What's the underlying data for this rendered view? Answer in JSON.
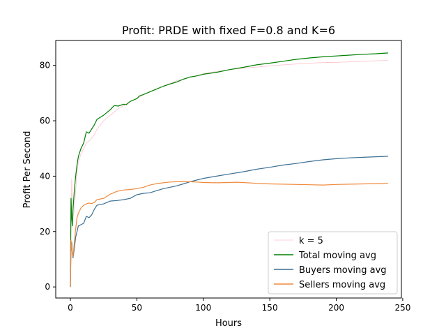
{
  "chart_data": {
    "type": "line",
    "title": "Profit: PRDE with fixed F=0.8 and K=6",
    "xlabel": "Hours",
    "ylabel": "Profit Per Second",
    "xlim": [
      -11,
      249
    ],
    "ylim": [
      -4,
      89
    ],
    "xticks": [
      0,
      50,
      100,
      150,
      200,
      250
    ],
    "yticks": [
      0,
      20,
      40,
      60,
      80
    ],
    "grid": false,
    "legend_position": "lower-right",
    "series": [
      {
        "name": "k = 5",
        "color": "#ffc0cb",
        "points": [
          [
            0,
            0
          ],
          [
            0.5,
            20
          ],
          [
            1,
            39
          ],
          [
            1.5,
            30
          ],
          [
            2,
            25
          ],
          [
            3,
            28
          ],
          [
            4,
            35
          ],
          [
            5,
            42
          ],
          [
            6,
            45
          ],
          [
            8,
            48
          ],
          [
            10,
            50
          ],
          [
            12,
            52
          ],
          [
            15,
            53
          ],
          [
            18,
            55
          ],
          [
            20,
            57
          ],
          [
            25,
            60
          ],
          [
            30,
            62
          ],
          [
            35,
            64
          ],
          [
            40,
            65.5
          ],
          [
            45,
            67
          ],
          [
            50,
            68
          ],
          [
            55,
            69.5
          ],
          [
            60,
            70.5
          ],
          [
            65,
            71.5
          ],
          [
            70,
            72.5
          ],
          [
            75,
            73.5
          ],
          [
            80,
            74.5
          ],
          [
            85,
            75
          ],
          [
            90,
            75.8
          ],
          [
            95,
            76.3
          ],
          [
            100,
            77
          ],
          [
            110,
            77.8
          ],
          [
            120,
            78.5
          ],
          [
            130,
            79
          ],
          [
            140,
            79.4
          ],
          [
            150,
            79.8
          ],
          [
            160,
            80.2
          ],
          [
            170,
            80.5
          ],
          [
            180,
            80.8
          ],
          [
            190,
            81
          ],
          [
            200,
            81.1
          ],
          [
            210,
            81.3
          ],
          [
            220,
            81.5
          ],
          [
            230,
            81.7
          ],
          [
            239,
            81.8
          ]
        ]
      },
      {
        "name": "Total moving avg",
        "color": "#008000",
        "points": [
          [
            0,
            0
          ],
          [
            0.5,
            32
          ],
          [
            1,
            25
          ],
          [
            1.5,
            22
          ],
          [
            2,
            28
          ],
          [
            3,
            35
          ],
          [
            4,
            40
          ],
          [
            5,
            44
          ],
          [
            6,
            47
          ],
          [
            8,
            50
          ],
          [
            10,
            52
          ],
          [
            12,
            56
          ],
          [
            14,
            55.5
          ],
          [
            16,
            57
          ],
          [
            18,
            58.5
          ],
          [
            20,
            60.5
          ],
          [
            25,
            62
          ],
          [
            30,
            64
          ],
          [
            33,
            65.5
          ],
          [
            36,
            65.3
          ],
          [
            40,
            66
          ],
          [
            42,
            65.8
          ],
          [
            45,
            67
          ],
          [
            50,
            68
          ],
          [
            52,
            69
          ],
          [
            55,
            69.5
          ],
          [
            60,
            70.5
          ],
          [
            65,
            71.5
          ],
          [
            70,
            72.5
          ],
          [
            75,
            73.3
          ],
          [
            80,
            74
          ],
          [
            85,
            75
          ],
          [
            90,
            75.8
          ],
          [
            95,
            76.2
          ],
          [
            100,
            76.8
          ],
          [
            110,
            77.5
          ],
          [
            120,
            78.5
          ],
          [
            130,
            79.3
          ],
          [
            140,
            80.2
          ],
          [
            150,
            80.8
          ],
          [
            160,
            81.5
          ],
          [
            170,
            82.2
          ],
          [
            180,
            82.7
          ],
          [
            190,
            83.1
          ],
          [
            200,
            83.4
          ],
          [
            210,
            83.7
          ],
          [
            220,
            84
          ],
          [
            230,
            84.2
          ],
          [
            239,
            84.5
          ]
        ]
      },
      {
        "name": "Buyers moving avg",
        "color": "#3a6f94",
        "points": [
          [
            0,
            0
          ],
          [
            0.5,
            14
          ],
          [
            1,
            16
          ],
          [
            1.5,
            12
          ],
          [
            2,
            10.5
          ],
          [
            3,
            14
          ],
          [
            4,
            18
          ],
          [
            5,
            20
          ],
          [
            6,
            22
          ],
          [
            8,
            22.5
          ],
          [
            10,
            23
          ],
          [
            12,
            25.5
          ],
          [
            14,
            25
          ],
          [
            16,
            26
          ],
          [
            18,
            28
          ],
          [
            20,
            29.5
          ],
          [
            25,
            30
          ],
          [
            30,
            31
          ],
          [
            35,
            31.2
          ],
          [
            40,
            31.5
          ],
          [
            45,
            32
          ],
          [
            50,
            33.3
          ],
          [
            55,
            33.8
          ],
          [
            60,
            34
          ],
          [
            65,
            34.8
          ],
          [
            70,
            35.5
          ],
          [
            75,
            36
          ],
          [
            80,
            36.5
          ],
          [
            85,
            37.2
          ],
          [
            90,
            38
          ],
          [
            95,
            38.6
          ],
          [
            100,
            39.2
          ],
          [
            110,
            40
          ],
          [
            120,
            40.8
          ],
          [
            130,
            41.6
          ],
          [
            140,
            42.5
          ],
          [
            150,
            43.2
          ],
          [
            160,
            44
          ],
          [
            170,
            44.6
          ],
          [
            180,
            45.3
          ],
          [
            190,
            45.9
          ],
          [
            200,
            46.3
          ],
          [
            210,
            46.6
          ],
          [
            220,
            46.8
          ],
          [
            230,
            47
          ],
          [
            239,
            47.2
          ]
        ]
      },
      {
        "name": "Sellers moving avg",
        "color": "#f08a3c",
        "points": [
          [
            0,
            0
          ],
          [
            0.5,
            17
          ],
          [
            1,
            14
          ],
          [
            1.5,
            12
          ],
          [
            2,
            11
          ],
          [
            3,
            16
          ],
          [
            4,
            21
          ],
          [
            5,
            25
          ],
          [
            6,
            26.5
          ],
          [
            8,
            28.5
          ],
          [
            10,
            29.5
          ],
          [
            12,
            30
          ],
          [
            14,
            30.3
          ],
          [
            16,
            30.1
          ],
          [
            18,
            30.5
          ],
          [
            20,
            31.5
          ],
          [
            25,
            32
          ],
          [
            30,
            33.5
          ],
          [
            35,
            34.5
          ],
          [
            40,
            35
          ],
          [
            45,
            35.2
          ],
          [
            50,
            35.5
          ],
          [
            55,
            36
          ],
          [
            60,
            36.8
          ],
          [
            65,
            37.3
          ],
          [
            70,
            37.6
          ],
          [
            75,
            37.9
          ],
          [
            80,
            38
          ],
          [
            85,
            38
          ],
          [
            90,
            38
          ],
          [
            95,
            37.9
          ],
          [
            100,
            37.7
          ],
          [
            110,
            37.6
          ],
          [
            120,
            37.7
          ],
          [
            125,
            37.8
          ],
          [
            130,
            37.7
          ],
          [
            140,
            37.4
          ],
          [
            150,
            37.2
          ],
          [
            160,
            37.1
          ],
          [
            170,
            37
          ],
          [
            180,
            36.9
          ],
          [
            190,
            36.8
          ],
          [
            200,
            37
          ],
          [
            210,
            37.1
          ],
          [
            220,
            37.2
          ],
          [
            230,
            37.3
          ],
          [
            239,
            37.4
          ]
        ]
      }
    ]
  }
}
